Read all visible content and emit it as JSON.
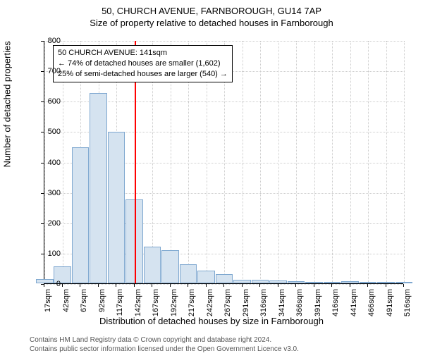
{
  "title": "50, CHURCH AVENUE, FARNBOROUGH, GU14 7AP",
  "subtitle": "Size of property relative to detached houses in Farnborough",
  "y_axis_label": "Number of detached properties",
  "x_axis_label": "Distribution of detached houses by size in Farnborough",
  "chart": {
    "type": "histogram",
    "ylim": [
      0,
      800
    ],
    "ytick_step": 100,
    "yticks": [
      0,
      100,
      200,
      300,
      400,
      500,
      600,
      700,
      800
    ],
    "xticks": [
      "17sqm",
      "42sqm",
      "67sqm",
      "92sqm",
      "117sqm",
      "142sqm",
      "167sqm",
      "192sqm",
      "217sqm",
      "242sqm",
      "267sqm",
      "291sqm",
      "316sqm",
      "341sqm",
      "366sqm",
      "391sqm",
      "416sqm",
      "441sqm",
      "466sqm",
      "491sqm",
      "516sqm"
    ],
    "bar_values": [
      15,
      55,
      448,
      625,
      498,
      275,
      120,
      110,
      62,
      42,
      30,
      12,
      12,
      10,
      6,
      4,
      4,
      6,
      2,
      2,
      2
    ],
    "bar_fill": "#d5e3f0",
    "bar_border": "#7fa8d0",
    "grid_color": "#cccccc",
    "reference_line_x_index": 5.0,
    "reference_line_color": "#ff0000"
  },
  "info_box": {
    "line1": "50 CHURCH AVENUE: 141sqm",
    "line2": "← 74% of detached houses are smaller (1,602)",
    "line3": "25% of semi-detached houses are larger (540) →"
  },
  "footer_line1": "Contains HM Land Registry data © Crown copyright and database right 2024.",
  "footer_line2": "Contains public sector information licensed under the Open Government Licence v3.0."
}
